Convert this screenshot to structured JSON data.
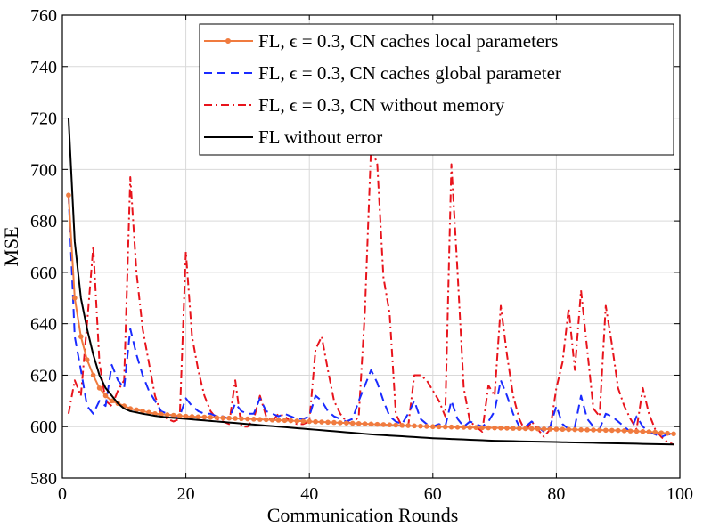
{
  "chart_data": {
    "type": "line",
    "title": "",
    "xlabel": "Communication Rounds",
    "ylabel": "MSE",
    "xlim": [
      0,
      100
    ],
    "ylim": [
      580,
      760
    ],
    "xticks": [
      0,
      20,
      40,
      60,
      80,
      100
    ],
    "yticks": [
      580,
      600,
      620,
      640,
      660,
      680,
      700,
      720,
      740,
      760
    ],
    "xtick_labels": [
      "0",
      "20",
      "40",
      "60",
      "80",
      "100"
    ],
    "ytick_labels": [
      "580",
      "600",
      "620",
      "640",
      "660",
      "680",
      "700",
      "720",
      "740",
      "760"
    ],
    "grid": true,
    "legend_position": "top-right",
    "series": [
      {
        "name": "FL, ε = 0.3, CN caches local parameters",
        "color": "#f07b3f",
        "style": "solid-dot",
        "x": [
          1,
          2,
          3,
          4,
          5,
          6,
          7,
          8,
          9,
          10,
          11,
          12,
          13,
          14,
          15,
          16,
          17,
          18,
          19,
          20,
          21,
          22,
          23,
          24,
          25,
          26,
          27,
          28,
          29,
          30,
          31,
          32,
          33,
          34,
          35,
          36,
          37,
          38,
          39,
          40,
          41,
          42,
          43,
          44,
          45,
          46,
          47,
          48,
          49,
          50,
          51,
          52,
          53,
          54,
          55,
          56,
          57,
          58,
          59,
          60,
          61,
          62,
          63,
          64,
          65,
          66,
          67,
          68,
          69,
          70,
          71,
          72,
          73,
          74,
          75,
          76,
          77,
          78,
          79,
          80,
          81,
          82,
          83,
          84,
          85,
          86,
          87,
          88,
          89,
          90,
          91,
          92,
          93,
          94,
          95,
          96,
          97,
          98,
          99
        ],
        "y": [
          690,
          650,
          635,
          626,
          620,
          615,
          612,
          610,
          609,
          608,
          607,
          606.5,
          606,
          605.5,
          605,
          604.8,
          604.6,
          604.4,
          604.2,
          604,
          603.9,
          603.8,
          603.7,
          603.6,
          603.5,
          603.4,
          603.3,
          603.2,
          603.1,
          603,
          602.9,
          602.8,
          602.7,
          602.6,
          602.5,
          602.4,
          602.3,
          602.2,
          602.1,
          602,
          601.9,
          601.8,
          601.7,
          601.6,
          601.5,
          601.4,
          601.3,
          601.2,
          601.1,
          601,
          600.9,
          600.8,
          600.7,
          600.6,
          600.5,
          600.4,
          600.3,
          600.2,
          600.1,
          600,
          599.95,
          599.9,
          599.85,
          599.8,
          599.75,
          599.7,
          599.65,
          599.6,
          599.55,
          599.5,
          599.45,
          599.4,
          599.35,
          599.3,
          599.25,
          599.2,
          599.15,
          599.1,
          599.05,
          599,
          598.95,
          598.9,
          598.85,
          598.8,
          598.75,
          598.7,
          598.65,
          598.6,
          598.55,
          598.5,
          598.4,
          598.3,
          598.2,
          598.1,
          598,
          597.8,
          597.6,
          597.4,
          597.2
        ]
      },
      {
        "name": "FL, ε = 0.3, CN caches global parameter",
        "color": "#1a2bff",
        "style": "dashed",
        "x": [
          1,
          2,
          3,
          4,
          5,
          6,
          7,
          8,
          9,
          10,
          11,
          12,
          13,
          14,
          15,
          16,
          17,
          18,
          19,
          20,
          21,
          22,
          23,
          24,
          25,
          26,
          27,
          28,
          29,
          30,
          31,
          32,
          33,
          34,
          35,
          36,
          37,
          38,
          39,
          40,
          41,
          42,
          43,
          44,
          45,
          46,
          47,
          48,
          49,
          50,
          51,
          52,
          53,
          54,
          55,
          56,
          57,
          58,
          59,
          60,
          61,
          62,
          63,
          64,
          65,
          66,
          67,
          68,
          69,
          70,
          71,
          72,
          73,
          74,
          75,
          76,
          77,
          78,
          79,
          80,
          81,
          82,
          83,
          84,
          85,
          86,
          87,
          88,
          89,
          90,
          91,
          92,
          93,
          94,
          95,
          96,
          97,
          98,
          99
        ],
        "y": [
          690,
          635,
          622,
          608,
          605,
          610,
          608,
          624,
          618,
          615,
          638,
          628,
          620,
          614,
          610,
          606,
          605,
          604,
          604,
          611,
          608,
          606,
          605,
          605,
          604,
          604,
          603,
          609,
          606,
          605,
          605,
          611,
          606,
          605,
          604,
          605,
          604,
          603,
          603,
          604,
          612,
          610,
          606,
          604,
          603,
          602,
          603,
          610,
          616,
          622,
          617,
          610,
          604,
          602,
          601,
          605,
          610,
          603,
          601,
          600,
          601,
          600,
          610,
          603,
          600,
          602,
          601,
          600,
          602,
          606,
          618,
          612,
          605,
          600,
          600,
          602,
          600,
          598,
          600,
          608,
          601,
          599,
          600,
          612,
          603,
          600,
          599,
          605,
          604,
          602,
          600,
          598,
          604,
          600,
          598,
          597,
          596,
          597,
          597
        ]
      },
      {
        "name": "FL, ε = 0.3, CN without memory",
        "color": "#e8141c",
        "style": "dashdot",
        "x": [
          1,
          2,
          3,
          4,
          5,
          6,
          7,
          8,
          9,
          10,
          11,
          12,
          13,
          14,
          15,
          16,
          17,
          18,
          19,
          20,
          21,
          22,
          23,
          24,
          25,
          26,
          27,
          28,
          29,
          30,
          31,
          32,
          33,
          34,
          35,
          36,
          37,
          38,
          39,
          40,
          41,
          42,
          43,
          44,
          45,
          46,
          47,
          48,
          49,
          50,
          51,
          52,
          53,
          54,
          55,
          56,
          57,
          58,
          59,
          60,
          61,
          62,
          63,
          64,
          65,
          66,
          67,
          68,
          69,
          70,
          71,
          72,
          73,
          74,
          75,
          76,
          77,
          78,
          79,
          80,
          81,
          82,
          83,
          84,
          85,
          86,
          87,
          88,
          89,
          90,
          91,
          92,
          93,
          94,
          95,
          96,
          97,
          98,
          99
        ],
        "y": [
          605,
          618,
          612,
          640,
          670,
          625,
          610,
          608,
          614,
          618,
          697,
          660,
          638,
          625,
          612,
          605,
          603,
          602,
          603,
          668,
          635,
          622,
          612,
          606,
          603,
          602,
          601,
          618,
          600,
          600,
          603,
          612,
          604,
          602,
          605,
          604,
          602,
          601,
          601,
          602,
          630,
          635,
          622,
          610,
          605,
          602,
          601,
          604,
          645,
          709,
          702,
          658,
          644,
          605,
          600,
          600,
          620,
          620,
          618,
          614,
          610,
          604,
          702,
          660,
          615,
          602,
          600,
          598,
          616,
          612,
          647,
          628,
          612,
          603,
          598,
          602,
          599,
          596,
          599,
          615,
          625,
          646,
          622,
          653,
          630,
          607,
          604,
          647,
          632,
          615,
          608,
          603,
          599,
          615,
          605,
          599,
          596,
          594,
          593
        ]
      },
      {
        "name": "FL without error",
        "color": "#000000",
        "style": "solid",
        "x": [
          1,
          2,
          3,
          4,
          5,
          6,
          7,
          8,
          9,
          10,
          11,
          12,
          13,
          14,
          15,
          16,
          17,
          18,
          19,
          20,
          21,
          22,
          23,
          24,
          25,
          26,
          27,
          28,
          29,
          30,
          31,
          32,
          33,
          34,
          35,
          36,
          37,
          38,
          39,
          40,
          41,
          42,
          43,
          44,
          45,
          46,
          47,
          48,
          49,
          50,
          51,
          52,
          53,
          54,
          55,
          56,
          57,
          58,
          59,
          60,
          61,
          62,
          63,
          64,
          65,
          66,
          67,
          68,
          69,
          70,
          71,
          72,
          73,
          74,
          75,
          76,
          77,
          78,
          79,
          80,
          81,
          82,
          83,
          84,
          85,
          86,
          87,
          88,
          89,
          90,
          91,
          92,
          93,
          94,
          95,
          96,
          97,
          98,
          99
        ],
        "y": [
          720,
          672,
          650,
          638,
          628,
          620,
          615,
          612,
          609,
          607,
          606,
          605.5,
          605,
          604.6,
          604.2,
          603.9,
          603.6,
          603.4,
          603.2,
          603,
          602.8,
          602.6,
          602.4,
          602.2,
          602,
          601.8,
          601.6,
          601.4,
          601.2,
          601,
          600.8,
          600.6,
          600.4,
          600.2,
          600,
          599.8,
          599.6,
          599.4,
          599.2,
          599,
          598.8,
          598.6,
          598.4,
          598.2,
          598,
          597.8,
          597.6,
          597.4,
          597.2,
          597,
          596.85,
          596.7,
          596.55,
          596.4,
          596.25,
          596.1,
          595.95,
          595.8,
          595.65,
          595.5,
          595.4,
          595.3,
          595.2,
          595.1,
          595,
          594.9,
          594.8,
          594.7,
          594.6,
          594.5,
          594.45,
          594.4,
          594.35,
          594.3,
          594.25,
          594.2,
          594.15,
          594.1,
          594.05,
          594,
          593.95,
          593.9,
          593.85,
          593.8,
          593.75,
          593.7,
          593.65,
          593.6,
          593.55,
          593.5,
          593.45,
          593.4,
          593.35,
          593.3,
          593.25,
          593.2,
          593.15,
          593.1,
          593.05
        ]
      }
    ]
  },
  "legend": {
    "entries": [
      {
        "label": "FL, ϵ = 0.3, CN caches local parameters"
      },
      {
        "label": "FL, ϵ = 0.3, CN caches global parameter"
      },
      {
        "label": "FL, ϵ = 0.3, CN without memory"
      },
      {
        "label": "FL without error"
      }
    ]
  }
}
